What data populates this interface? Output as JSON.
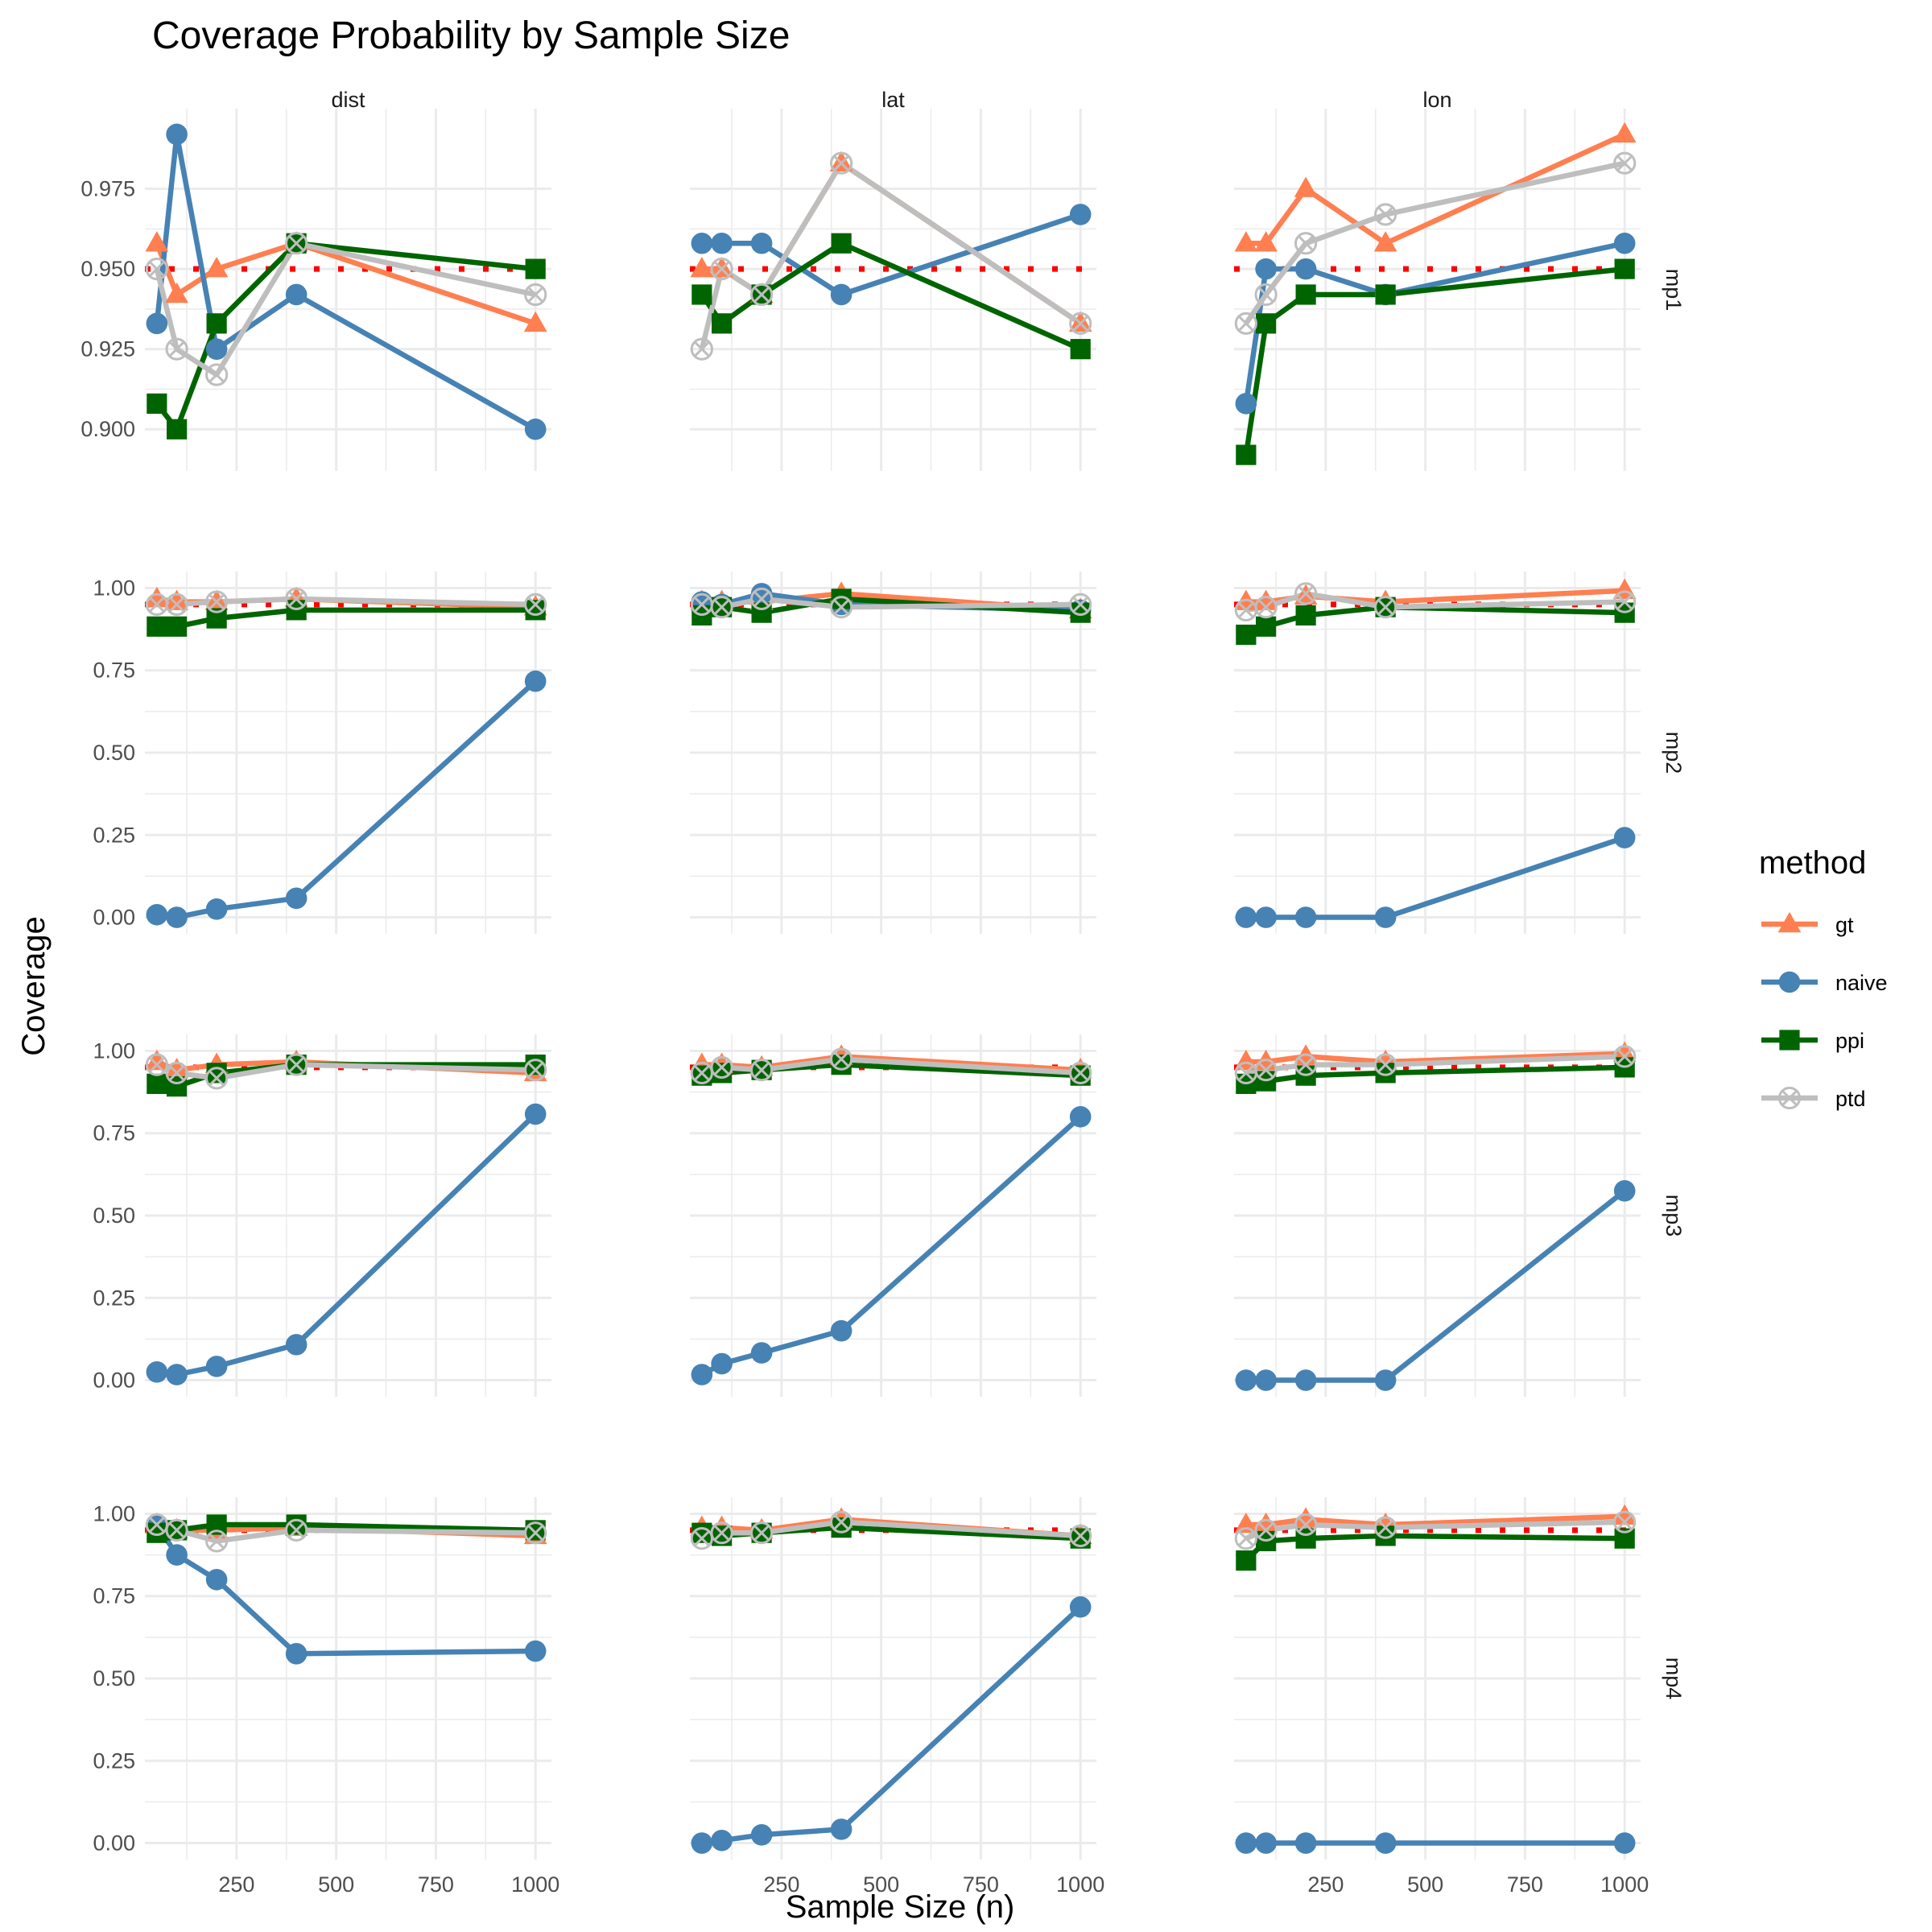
{
  "chart_data": {
    "type": "line",
    "title": "Coverage Probability by Sample Size",
    "xlabel": "Sample Size (n)",
    "ylabel": "Coverage",
    "x": [
      50,
      100,
      200,
      400,
      1000
    ],
    "x_ticks": [
      250,
      500,
      750,
      1000
    ],
    "xlim": [
      20,
      1040
    ],
    "reference_line": {
      "y": 0.95,
      "color": "#ff0000",
      "style": "dotted"
    },
    "grid": true,
    "legend": {
      "title": "method",
      "placement": "right"
    },
    "columns": [
      "dist",
      "lat",
      "lon"
    ],
    "rows": [
      "mp1",
      "mp2",
      "mp3",
      "mp4"
    ],
    "methods": [
      {
        "name": "gt",
        "color": "#ff7f50",
        "shape": "triangle"
      },
      {
        "name": "naive",
        "color": "#4682b4",
        "shape": "circle"
      },
      {
        "name": "ppi",
        "color": "#006400",
        "shape": "square"
      },
      {
        "name": "ptd",
        "color": "#bebebe",
        "shape": "circle-x"
      }
    ],
    "rows_axes": [
      {
        "ylim": [
          0.887,
          1.0
        ],
        "ticks": [
          0.9,
          0.925,
          0.95,
          0.975
        ],
        "tick_labels": [
          "0.900",
          "0.925",
          "0.950",
          "0.975"
        ]
      },
      {
        "ylim": [
          -0.05,
          1.05
        ],
        "ticks": [
          0,
          0.25,
          0.5,
          0.75,
          1.0
        ],
        "tick_labels": [
          "0.00",
          "0.25",
          "0.50",
          "0.75",
          "1.00"
        ]
      },
      {
        "ylim": [
          -0.05,
          1.05
        ],
        "ticks": [
          0,
          0.25,
          0.5,
          0.75,
          1.0
        ],
        "tick_labels": [
          "0.00",
          "0.25",
          "0.50",
          "0.75",
          "1.00"
        ]
      },
      {
        "ylim": [
          -0.05,
          1.05
        ],
        "ticks": [
          0,
          0.25,
          0.5,
          0.75,
          1.0
        ],
        "tick_labels": [
          "0.00",
          "0.25",
          "0.50",
          "0.75",
          "1.00"
        ]
      }
    ],
    "panels": [
      {
        "row": "mp1",
        "col": "dist",
        "series": {
          "gt": [
            0.958,
            0.942,
            0.95,
            0.958,
            0.933
          ],
          "naive": [
            0.933,
            0.992,
            0.925,
            0.942,
            0.9
          ],
          "ppi": [
            0.908,
            0.9,
            0.933,
            0.958,
            0.95
          ],
          "ptd": [
            0.95,
            0.925,
            0.917,
            0.958,
            0.942
          ]
        }
      },
      {
        "row": "mp1",
        "col": "lat",
        "series": {
          "gt": [
            0.95,
            0.95,
            0.942,
            0.983,
            0.933
          ],
          "naive": [
            0.958,
            0.958,
            0.958,
            0.942,
            0.967
          ],
          "ppi": [
            0.942,
            0.933,
            0.942,
            0.958,
            0.925
          ],
          "ptd": [
            0.925,
            0.95,
            0.942,
            0.983,
            0.933
          ]
        }
      },
      {
        "row": "mp1",
        "col": "lon",
        "series": {
          "gt": [
            0.958,
            0.958,
            0.975,
            0.958,
            0.992
          ],
          "naive": [
            0.908,
            0.95,
            0.95,
            0.942,
            0.958
          ],
          "ppi": [
            0.892,
            0.933,
            0.942,
            0.942,
            0.95
          ],
          "ptd": [
            0.933,
            0.942,
            0.958,
            0.967,
            0.983
          ]
        }
      },
      {
        "row": "mp2",
        "col": "dist",
        "series": {
          "gt": [
            0.967,
            0.958,
            0.958,
            0.967,
            0.942
          ],
          "naive": [
            0.008,
            0.0,
            0.025,
            0.058,
            0.717
          ],
          "ppi": [
            0.883,
            0.883,
            0.908,
            0.933,
            0.933
          ],
          "ptd": [
            0.95,
            0.95,
            0.958,
            0.967,
            0.95
          ]
        }
      },
      {
        "row": "mp2",
        "col": "lat",
        "series": {
          "gt": [
            0.958,
            0.958,
            0.958,
            0.983,
            0.933
          ],
          "naive": [
            0.958,
            0.95,
            0.983,
            0.95,
            0.933
          ],
          "ppi": [
            0.917,
            0.942,
            0.925,
            0.967,
            0.925
          ],
          "ptd": [
            0.95,
            0.942,
            0.967,
            0.942,
            0.95
          ]
        }
      },
      {
        "row": "mp2",
        "col": "lon",
        "series": {
          "gt": [
            0.958,
            0.958,
            0.975,
            0.958,
            0.992
          ],
          "naive": [
            0.0,
            0.0,
            0.0,
            0.0,
            0.242
          ],
          "ppi": [
            0.858,
            0.883,
            0.917,
            0.942,
            0.925
          ],
          "ptd": [
            0.933,
            0.942,
            0.983,
            0.942,
            0.958
          ]
        }
      },
      {
        "row": "mp3",
        "col": "dist",
        "series": {
          "gt": [
            0.967,
            0.942,
            0.958,
            0.967,
            0.933
          ],
          "naive": [
            0.025,
            0.017,
            0.042,
            0.108,
            0.808
          ],
          "ppi": [
            0.9,
            0.892,
            0.933,
            0.958,
            0.958
          ],
          "ptd": [
            0.958,
            0.933,
            0.917,
            0.958,
            0.942
          ]
        }
      },
      {
        "row": "mp3",
        "col": "lat",
        "series": {
          "gt": [
            0.958,
            0.958,
            0.95,
            0.983,
            0.942
          ],
          "naive": [
            0.017,
            0.05,
            0.083,
            0.15,
            0.8
          ],
          "ppi": [
            0.925,
            0.933,
            0.942,
            0.958,
            0.925
          ],
          "ptd": [
            0.933,
            0.95,
            0.942,
            0.975,
            0.933
          ]
        }
      },
      {
        "row": "mp3",
        "col": "lon",
        "series": {
          "gt": [
            0.967,
            0.967,
            0.983,
            0.967,
            0.992
          ],
          "naive": [
            0.0,
            0.0,
            0.0,
            0.0,
            0.575
          ],
          "ppi": [
            0.9,
            0.908,
            0.925,
            0.933,
            0.95
          ],
          "ptd": [
            0.933,
            0.942,
            0.958,
            0.958,
            0.983
          ]
        }
      },
      {
        "row": "mp4",
        "col": "dist",
        "series": {
          "gt": [
            0.967,
            0.95,
            0.95,
            0.958,
            0.933
          ],
          "naive": [
            0.967,
            0.875,
            0.8,
            0.575,
            0.583
          ],
          "ppi": [
            0.942,
            0.95,
            0.967,
            0.967,
            0.95
          ],
          "ptd": [
            0.967,
            0.95,
            0.917,
            0.95,
            0.942
          ]
        }
      },
      {
        "row": "mp4",
        "col": "lat",
        "series": {
          "gt": [
            0.958,
            0.958,
            0.95,
            0.983,
            0.933
          ],
          "naive": [
            0.0,
            0.008,
            0.025,
            0.042,
            0.717
          ],
          "ppi": [
            0.942,
            0.933,
            0.942,
            0.958,
            0.925
          ],
          "ptd": [
            0.925,
            0.942,
            0.942,
            0.975,
            0.933
          ]
        }
      },
      {
        "row": "mp4",
        "col": "lon",
        "series": {
          "gt": [
            0.967,
            0.967,
            0.983,
            0.967,
            0.992
          ],
          "naive": [
            0.0,
            0.0,
            0.0,
            0.0,
            0.0
          ],
          "ppi": [
            0.858,
            0.917,
            0.925,
            0.933,
            0.925
          ],
          "ptd": [
            0.925,
            0.95,
            0.967,
            0.958,
            0.975
          ]
        }
      }
    ]
  }
}
